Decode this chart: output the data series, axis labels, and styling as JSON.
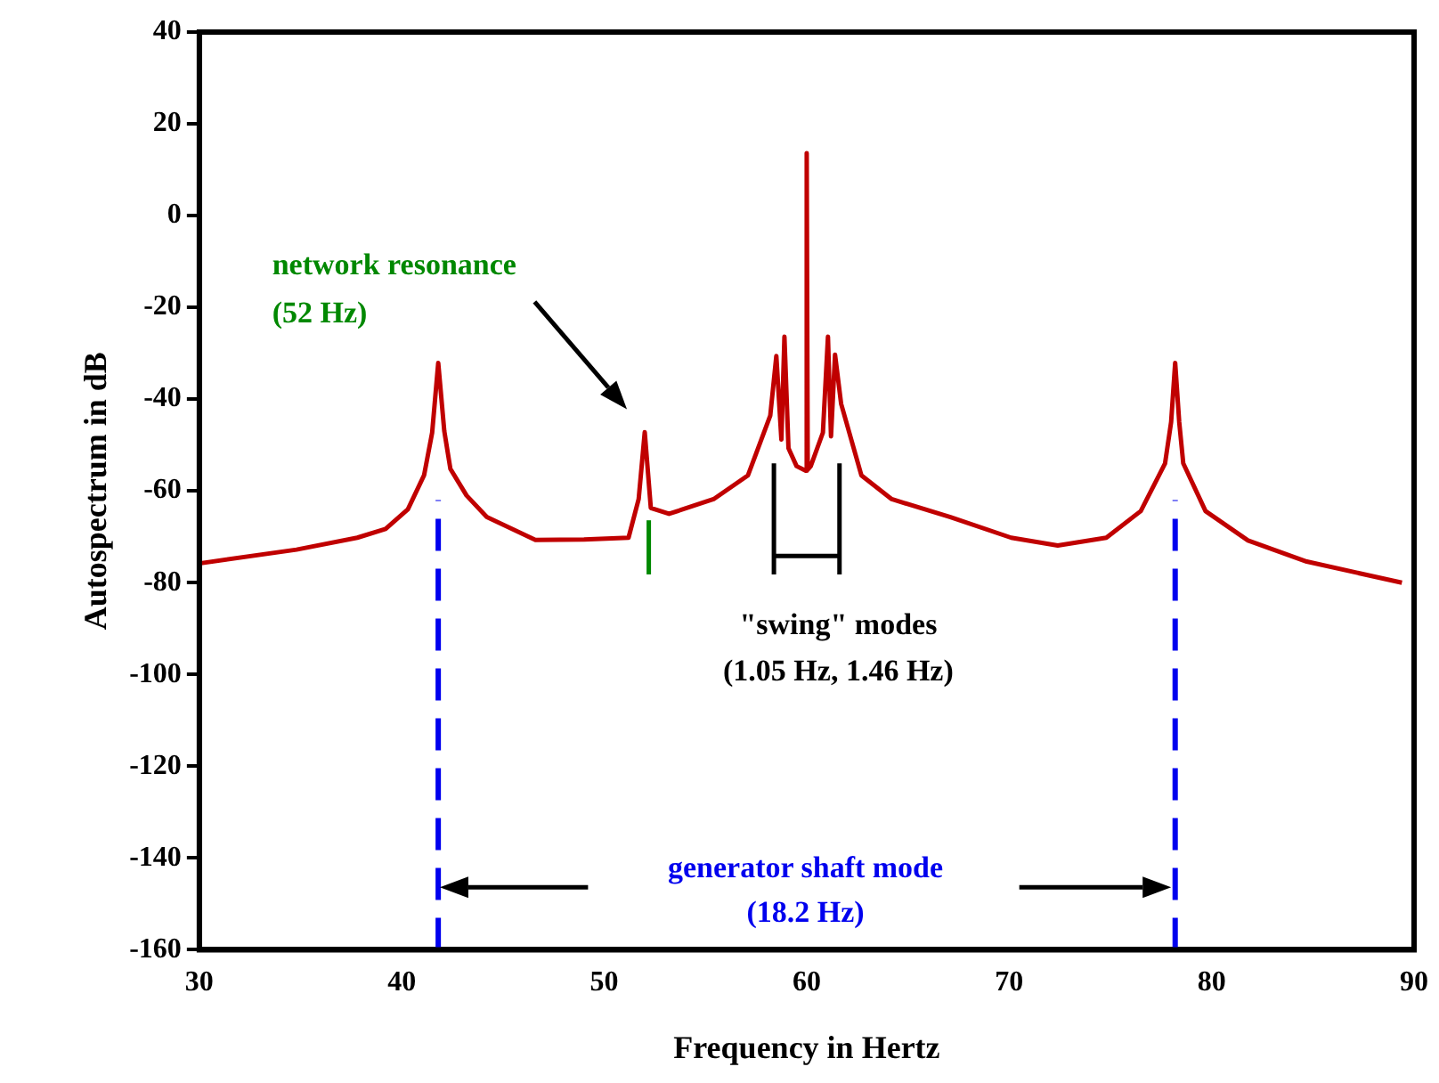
{
  "chart_data": {
    "type": "line",
    "xlabel": "Frequency in Hertz",
    "ylabel": "Autospectrum in dB",
    "x": [
      30,
      34.8,
      37.8,
      39.2,
      40.3,
      41.1,
      41.5,
      41.8,
      42.1,
      42.4,
      43.2,
      44.2,
      46.6,
      49,
      51.2,
      51.7,
      52.0,
      52.3,
      53.2,
      55.4,
      57.1,
      58.2,
      58.5,
      58.75,
      58.9,
      59.1,
      59.5,
      59.95,
      60.0,
      60.05,
      60.2,
      60.8,
      61.05,
      61.2,
      61.4,
      61.7,
      62.7,
      64.2,
      67.1,
      70.1,
      72.4,
      74.8,
      76.5,
      77.7,
      78.0,
      78.2,
      78.4,
      78.6,
      79.7,
      81.8,
      84.7,
      89.4
    ],
    "series": [
      {
        "color": "#c00000",
        "values": [
          -75.8,
          -72.8,
          -70.2,
          -68.3,
          -64,
          -56.6,
          -47.3,
          -32.1,
          -47,
          -55.2,
          -61,
          -65.7,
          -70.7,
          -70.6,
          -70.2,
          -61.8,
          -47.2,
          -63.7,
          -65,
          -61.8,
          -56.6,
          -43.6,
          -30.6,
          -48.8,
          -26.4,
          -50.7,
          -54.6,
          -55.6,
          13.6,
          -55.4,
          -54.6,
          -47.3,
          -26.4,
          -48.1,
          -30.3,
          -41,
          -56.6,
          -61.8,
          -65.7,
          -70.2,
          -71.9,
          -70.2,
          -64.4,
          -54,
          -45,
          -32.1,
          -45,
          -54,
          -64.4,
          -70.8,
          -75.4,
          -80
        ]
      }
    ],
    "xlim": [
      30,
      90
    ],
    "xticks": [
      30,
      40,
      50,
      60,
      70,
      80,
      90
    ],
    "ylim": [
      -160,
      40
    ],
    "yticks": [
      -160,
      -140,
      -120,
      -100,
      -80,
      -60,
      -40,
      -20,
      0,
      20,
      40
    ],
    "grid": false,
    "legend": false,
    "marker": "none",
    "line_style": "solid",
    "ref_lines": [
      {
        "axis": "x",
        "value": 41.8,
        "color": "#0000ee",
        "line_style": "dashed"
      },
      {
        "axis": "x",
        "value": 78.2,
        "color": "#0000ee",
        "line_style": "dashed"
      }
    ],
    "annotations": [
      "network resonance",
      "(52 Hz)",
      "\"swing\" modes",
      "(1.05 Hz, 1.46 Hz)",
      "generator shaft mode",
      "(18.2 Hz)"
    ]
  }
}
